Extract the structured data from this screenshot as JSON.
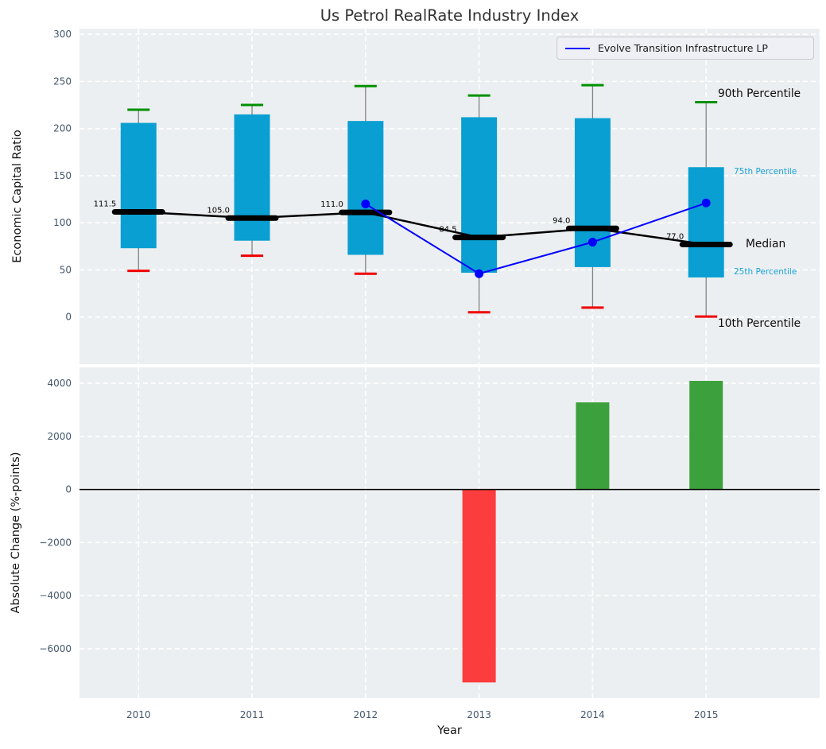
{
  "title": "Us Petrol RealRate Industry Index",
  "legend": {
    "label": "Evolve Transition Infrastructure LP"
  },
  "annotations": {
    "p90": "90th Percentile",
    "p75": "75th Percentile",
    "median": "Median",
    "p25": "25th Percentile",
    "p10": "10th Percentile"
  },
  "colors": {
    "axes_bg": "#eceff1",
    "grid": "#ffffff",
    "tick_text": "#44576b",
    "box_fill": "#0a9fd2",
    "whisker": "#808080",
    "cap_top": "#009000",
    "cap_bottom": "#f00000",
    "median_line": "#000000",
    "overlay_line": "#0000ff",
    "bar_positive": "#3ca03c",
    "bar_negative": "#fb3d3d",
    "annotation_accent": "#18a2d9"
  },
  "chart_data": [
    {
      "type": "box-percentile",
      "title": "Us Petrol RealRate Industry Index",
      "ylabel": "Economic Capital Ratio",
      "categories": [
        "2010",
        "2011",
        "2012",
        "2013",
        "2014",
        "2015"
      ],
      "percentiles": {
        "p90": [
          220,
          225,
          245,
          235,
          246,
          228
        ],
        "p75": [
          206,
          215,
          208,
          212,
          211,
          159
        ],
        "median": [
          111.5,
          105.0,
          111.0,
          84.5,
          94.0,
          77.0
        ],
        "p25": [
          73,
          81,
          66,
          47,
          53,
          42
        ],
        "p10": [
          49,
          65,
          46,
          5,
          10,
          0.5
        ]
      },
      "median_labels": [
        "111.5",
        "105.0",
        "111.0",
        "84.5",
        "94.0",
        "77.0"
      ],
      "overlay_series": {
        "name": "Evolve Transition Infrastructure LP",
        "x": [
          "2012",
          "2013",
          "2014",
          "2015"
        ],
        "y": [
          120,
          46,
          79.5,
          121
        ]
      },
      "yticks": [
        0,
        50,
        100,
        150,
        200,
        250,
        300
      ],
      "ytick_labels": [
        "0",
        "50",
        "100",
        "150",
        "200",
        "250",
        "300"
      ],
      "ylim": [
        -50,
        306
      ],
      "grid": true,
      "legend_position": "upper right"
    },
    {
      "type": "bar",
      "ylabel": "Absolute Change (%-points)",
      "xlabel": "Year",
      "categories": [
        "2010",
        "2011",
        "2012",
        "2013",
        "2014",
        "2015"
      ],
      "values": [
        0,
        0,
        0,
        -7270,
        3280,
        4090
      ],
      "yticks": [
        -6000,
        -4000,
        -2000,
        0,
        2000,
        4000
      ],
      "ytick_labels": [
        "−6000",
        "−4000",
        "−2000",
        "0",
        "2000",
        "4000"
      ],
      "ylim": [
        -7860,
        4600
      ],
      "grid": true,
      "zero_line": true
    }
  ]
}
